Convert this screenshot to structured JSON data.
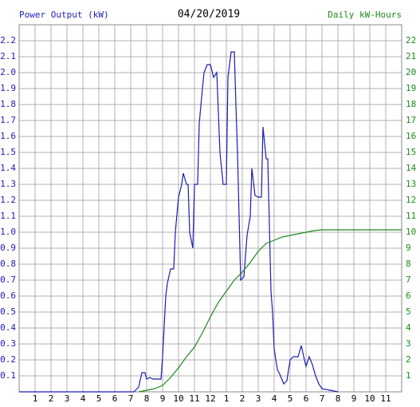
{
  "chart_data": {
    "type": "line",
    "title": "04/20/2019",
    "y_label": "Power Output (kW)",
    "y2_label": "Daily kW-Hours",
    "xlim": [
      0,
      24
    ],
    "xticks": [
      1,
      2,
      3,
      4,
      5,
      6,
      7,
      8,
      9,
      10,
      11,
      12,
      {
        "value": 13,
        "label": "1"
      },
      {
        "value": 14,
        "label": "2"
      },
      {
        "value": 15,
        "label": "3"
      },
      {
        "value": 16,
        "label": "4"
      },
      {
        "value": 17,
        "label": "5"
      },
      {
        "value": 18,
        "label": "6"
      },
      {
        "value": 19,
        "label": "7"
      },
      {
        "value": 20,
        "label": "8"
      },
      {
        "value": 21,
        "label": "9"
      },
      {
        "value": 22,
        "label": "10"
      },
      {
        "value": 23,
        "label": "11"
      }
    ],
    "ylim": [
      0,
      2.3
    ],
    "yticks": [
      0.1,
      0.2,
      0.3,
      0.4,
      0.5,
      0.6,
      0.7,
      0.8,
      0.9,
      {
        "value": 1,
        "label": "1.0"
      },
      1.1,
      1.2,
      1.3,
      1.4,
      1.5,
      1.6,
      1.7,
      1.8,
      1.9,
      {
        "value": 2,
        "label": "2.0"
      },
      2.1,
      2.2
    ],
    "y2lim": [
      0,
      23
    ],
    "y2ticks": [
      1,
      2,
      3,
      4,
      5,
      6,
      7,
      8,
      9,
      10,
      11,
      12,
      13,
      14,
      15,
      16,
      17,
      18,
      19,
      20,
      21,
      22
    ],
    "grid": true,
    "series": [
      {
        "name": "Power Output (kW)",
        "color": "#1c1cb4",
        "x": [
          0,
          7.2,
          7.5,
          7.7,
          7.9,
          8.0,
          8.2,
          8.4,
          8.9,
          9.0,
          9.2,
          9.3,
          9.5,
          9.7,
          9.8,
          10.0,
          10.2,
          10.3,
          10.5,
          10.6,
          10.7,
          10.9,
          11.0,
          11.2,
          11.3,
          11.5,
          11.6,
          11.8,
          12.0,
          12.2,
          12.4,
          12.6,
          12.8,
          13.0,
          13.1,
          13.3,
          13.5,
          13.6,
          13.7,
          13.9,
          14.1,
          14.3,
          14.5,
          14.6,
          14.8,
          15.0,
          15.2,
          15.3,
          15.5,
          15.6,
          15.8,
          15.9,
          16.0,
          16.2,
          16.4,
          16.6,
          16.8,
          17.0,
          17.2,
          17.5,
          17.7,
          17.9,
          18.0,
          18.2,
          18.4,
          18.6,
          18.8,
          19.0,
          19.5,
          20.0
        ],
        "values": [
          0,
          0,
          0.03,
          0.12,
          0.12,
          0.08,
          0.09,
          0.08,
          0.08,
          0.22,
          0.6,
          0.68,
          0.77,
          0.77,
          1.0,
          1.22,
          1.3,
          1.37,
          1.3,
          1.3,
          1.0,
          0.9,
          1.3,
          1.3,
          1.68,
          1.9,
          2.0,
          2.05,
          2.05,
          1.97,
          2.0,
          1.5,
          1.3,
          1.3,
          1.97,
          2.13,
          2.13,
          1.8,
          1.5,
          0.7,
          0.72,
          0.98,
          1.1,
          1.4,
          1.23,
          1.22,
          1.22,
          1.66,
          1.46,
          1.46,
          0.63,
          0.5,
          0.27,
          0.14,
          0.1,
          0.05,
          0.07,
          0.2,
          0.22,
          0.22,
          0.29,
          0.2,
          0.16,
          0.22,
          0.17,
          0.1,
          0.05,
          0.02,
          0.01,
          0
        ]
      },
      {
        "name": "Daily kW-Hours",
        "color": "#1a8a1a",
        "axis": "y2",
        "x": [
          7.5,
          8,
          8.5,
          9,
          9.5,
          10,
          10.5,
          11,
          11.5,
          12,
          12.5,
          13,
          13.5,
          14,
          14.5,
          15,
          15.5,
          16,
          16.5,
          17,
          17.5,
          18,
          18.5,
          19,
          20,
          24
        ],
        "values": [
          0,
          0.1,
          0.2,
          0.4,
          0.9,
          1.5,
          2.2,
          2.8,
          3.7,
          4.7,
          5.6,
          6.3,
          7.0,
          7.5,
          8.1,
          8.8,
          9.3,
          9.5,
          9.7,
          9.8,
          9.9,
          10.0,
          10.1,
          10.15,
          10.15,
          10.15
        ]
      }
    ]
  }
}
